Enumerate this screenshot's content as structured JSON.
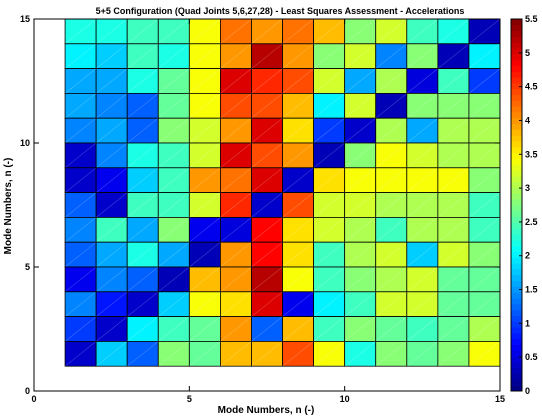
{
  "chart_data": {
    "type": "heatmap",
    "title": "5+5 Configuration (Quad Joints 5,6,27,28) - Least Squares Assessment - Accelerations",
    "xlabel": "Mode Numbers, n (-)",
    "ylabel": "Mode Numbers, n (-)",
    "xlim": [
      0,
      15
    ],
    "ylim": [
      0,
      15
    ],
    "xticks": [
      "0",
      "5",
      "10",
      "15"
    ],
    "yticks": [
      "0",
      "5",
      "10",
      "15"
    ],
    "colorbar": {
      "min": 0,
      "max": 5.5,
      "ticks": [
        "0",
        "0.5",
        "1",
        "1.5",
        "2",
        "2.5",
        "3",
        "3.5",
        "4",
        "4.5",
        "5",
        "5.5"
      ],
      "colormap": "jet"
    },
    "rows_top_to_bottom_n": [
      14,
      13,
      12,
      11,
      10,
      9,
      8,
      7,
      6,
      5,
      4,
      3,
      2,
      1
    ],
    "values": [
      [
        2.2,
        2.2,
        2.4,
        2.4,
        3.4,
        4.2,
        4.0,
        4.2,
        3.8,
        2.8,
        3.2,
        2.4,
        2.2,
        0.3
      ],
      [
        2.0,
        1.8,
        2.4,
        2.2,
        3.4,
        4.0,
        5.2,
        4.0,
        2.8,
        3.2,
        1.4,
        2.8,
        0.3,
        2.0
      ],
      [
        1.6,
        1.6,
        2.2,
        2.6,
        3.4,
        5.0,
        4.6,
        4.4,
        3.2,
        1.6,
        3.0,
        0.5,
        2.4,
        1.0
      ],
      [
        1.6,
        1.4,
        1.2,
        2.6,
        3.4,
        4.4,
        4.4,
        3.8,
        2.0,
        3.2,
        0.3,
        2.8,
        2.8,
        2.8
      ],
      [
        1.4,
        1.6,
        1.2,
        2.8,
        3.2,
        4.0,
        5.0,
        3.6,
        1.0,
        0.4,
        3.0,
        1.6,
        3.0,
        3.0
      ],
      [
        0.4,
        1.4,
        2.2,
        2.4,
        3.2,
        5.0,
        4.4,
        4.0,
        0.3,
        2.8,
        3.4,
        3.2,
        3.0,
        3.0
      ],
      [
        0.4,
        0.6,
        1.8,
        2.4,
        4.0,
        4.2,
        5.0,
        0.4,
        3.6,
        3.4,
        3.4,
        3.4,
        3.4,
        2.8
      ],
      [
        1.2,
        0.4,
        2.4,
        2.4,
        3.2,
        4.6,
        0.4,
        4.4,
        3.2,
        3.2,
        3.0,
        3.0,
        3.0,
        2.4
      ],
      [
        1.4,
        2.4,
        1.6,
        2.8,
        0.6,
        0.5,
        4.8,
        3.6,
        3.2,
        3.0,
        2.4,
        3.0,
        3.0,
        2.4
      ],
      [
        1.2,
        1.6,
        2.2,
        1.6,
        0.3,
        4.0,
        4.8,
        3.6,
        2.4,
        3.0,
        3.2,
        1.8,
        3.2,
        2.8
      ],
      [
        0.6,
        1.4,
        1.2,
        0.3,
        3.8,
        4.0,
        5.2,
        3.4,
        2.4,
        2.8,
        3.0,
        3.2,
        2.6,
        2.6
      ],
      [
        1.4,
        0.8,
        0.4,
        1.8,
        3.4,
        3.6,
        5.0,
        0.6,
        2.0,
        2.4,
        3.2,
        3.2,
        2.6,
        2.6
      ],
      [
        1.0,
        0.4,
        2.0,
        2.4,
        2.6,
        4.0,
        1.2,
        3.8,
        2.4,
        2.8,
        2.6,
        2.4,
        2.6,
        3.0
      ],
      [
        0.4,
        1.8,
        1.2,
        2.8,
        2.6,
        3.8,
        3.8,
        4.4,
        3.4,
        2.2,
        2.8,
        2.6,
        2.8,
        3.4
      ]
    ]
  }
}
